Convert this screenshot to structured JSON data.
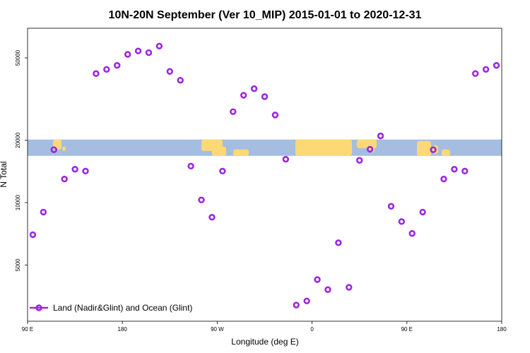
{
  "chart_data": {
    "type": "scatter",
    "title": "10N-20N September (Ver 10_MIP)   2015-01-01 to 2020-12-31",
    "xlabel": "Longitude (deg E)",
    "ylabel": "N Total",
    "x_ticks": [
      {
        "value": 90,
        "label": "90 E"
      },
      {
        "value": 180,
        "label": "180"
      },
      {
        "value": 270,
        "label": "90 W"
      },
      {
        "value": 360,
        "label": "0"
      },
      {
        "value": 450,
        "label": "90 E"
      },
      {
        "value": 540,
        "label": "180"
      }
    ],
    "y_ticks": [
      5000,
      10000,
      20000,
      50000
    ],
    "xlim": [
      90,
      540
    ],
    "ylim": [
      3000,
      60000
    ],
    "y_scale": "log",
    "legend": {
      "position": "bottom-left",
      "entries": [
        "Land (Nadir&Glint) and Ocean (Glint)"
      ]
    },
    "map_strip": {
      "latitude_band": "10N-20N",
      "ocean_color": "#a4bde0",
      "land_color": "#fcd975"
    },
    "series": [
      {
        "name": "Land (Nadir&Glint) and Ocean (Glint)",
        "color": "#9b27e0",
        "marker": "open-circle",
        "x": [
          95,
          105,
          115,
          125,
          135,
          145,
          155,
          165,
          175,
          185,
          195,
          205,
          215,
          225,
          235,
          245,
          255,
          265,
          275,
          285,
          295,
          305,
          315,
          325,
          335,
          345,
          355,
          365,
          375,
          385,
          395,
          405,
          415,
          425,
          435,
          445,
          455,
          465,
          475,
          485,
          495,
          505,
          515,
          525,
          535
        ],
        "y": [
          7000,
          9000,
          18000,
          13000,
          14500,
          14200,
          42000,
          44000,
          46000,
          52000,
          54000,
          53000,
          57000,
          43000,
          39000,
          15000,
          10300,
          8500,
          14200,
          27500,
          33000,
          35500,
          32500,
          26500,
          16200,
          3200,
          3350,
          4250,
          3800,
          6400,
          3900,
          16000,
          18100,
          21000,
          9600,
          8100,
          7100,
          9000,
          18000,
          13000,
          14500,
          14200,
          42000,
          44000,
          46000
        ]
      }
    ]
  }
}
